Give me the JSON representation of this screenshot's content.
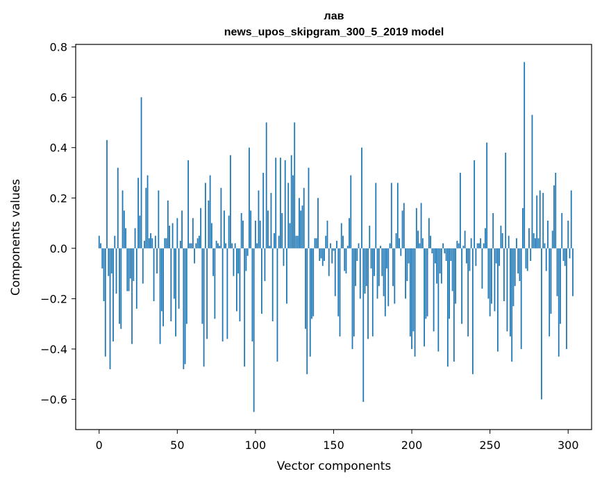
{
  "chart_data": {
    "type": "bar",
    "title": "лав",
    "subtitle": "news_upos_skipgram_300_5_2019 model",
    "xlabel": "Vector components",
    "ylabel": "Components values",
    "xlim": [
      -15,
      315
    ],
    "ylim": [
      -0.72,
      0.81
    ],
    "xticks": [
      0,
      50,
      100,
      150,
      200,
      250,
      300
    ],
    "yticks": [
      -0.6,
      -0.4,
      -0.2,
      0.0,
      0.2,
      0.4,
      0.6,
      0.8
    ],
    "xtick_labels": [
      "0",
      "50",
      "100",
      "150",
      "200",
      "250",
      "300"
    ],
    "ytick_labels": [
      "−0.6",
      "−0.4",
      "−0.2",
      "0.0",
      "0.2",
      "0.4",
      "0.6",
      "0.8"
    ],
    "bar_color": "#1f77b4",
    "grid": false,
    "values": [
      0.05,
      0.02,
      -0.08,
      -0.21,
      -0.43,
      0.43,
      -0.11,
      -0.48,
      -0.1,
      -0.37,
      0.05,
      -0.18,
      0.32,
      -0.3,
      -0.32,
      0.23,
      0.15,
      0.08,
      -0.17,
      -0.17,
      -0.12,
      -0.38,
      -0.13,
      0.08,
      -0.24,
      0.28,
      0.13,
      0.6,
      -0.14,
      0.03,
      0.24,
      0.29,
      0.04,
      0.06,
      0.04,
      -0.21,
      0.05,
      -0.1,
      0.23,
      -0.38,
      -0.25,
      -0.31,
      0.04,
      0.04,
      0.19,
      0.09,
      -0.29,
      0.1,
      -0.2,
      -0.35,
      0.12,
      -0.24,
      0.03,
      0.15,
      -0.48,
      -0.46,
      -0.3,
      0.35,
      0.02,
      0.02,
      0.12,
      -0.06,
      0.02,
      0.04,
      0.05,
      0.16,
      -0.3,
      -0.47,
      0.26,
      -0.36,
      0.19,
      0.29,
      0.1,
      -0.11,
      -0.28,
      0.03,
      0.02,
      0.01,
      0.24,
      -0.37,
      0.15,
      0.02,
      -0.36,
      0.13,
      0.37,
      0.02,
      -0.11,
      0.02,
      -0.25,
      -0.1,
      -0.29,
      0.14,
      0.11,
      -0.47,
      -0.09,
      -0.03,
      0.4,
      0.15,
      -0.37,
      -0.65,
      0.11,
      0.02,
      0.23,
      0.11,
      -0.26,
      0.3,
      -0.13,
      0.5,
      0.15,
      0.01,
      0.22,
      -0.29,
      0.06,
      0.36,
      -0.45,
      0.05,
      0.36,
      0.14,
      -0.07,
      0.35,
      -0.22,
      0.26,
      0.1,
      0.37,
      0.29,
      0.5,
      0.05,
      0.05,
      0.2,
      0.15,
      0.17,
      0.24,
      -0.32,
      -0.5,
      0.32,
      -0.43,
      -0.28,
      -0.27,
      0.04,
      0.04,
      0.2,
      -0.05,
      -0.04,
      -0.07,
      -0.05,
      0.05,
      0.11,
      -0.11,
      0.02,
      -0.06,
      -0.01,
      -0.19,
      0.03,
      -0.27,
      -0.35,
      0.1,
      0.05,
      -0.09,
      -0.1,
      0.01,
      0.12,
      0.29,
      -0.4,
      -0.35,
      -0.15,
      -0.05,
      0.02,
      -0.2,
      0.4,
      -0.61,
      -0.18,
      -0.15,
      -0.36,
      0.09,
      -0.08,
      -0.35,
      -0.11,
      0.26,
      -0.2,
      -0.15,
      0.01,
      -0.11,
      -0.19,
      -0.27,
      -0.08,
      -0.23,
      0.02,
      0.26,
      -0.15,
      -0.22,
      0.06,
      0.26,
      0.04,
      -0.03,
      0.15,
      0.18,
      -0.2,
      -0.13,
      -0.06,
      -0.35,
      -0.4,
      -0.33,
      -0.43,
      0.16,
      0.07,
      0.02,
      0.18,
      0.04,
      -0.39,
      -0.28,
      -0.27,
      0.12,
      0.05,
      -0.02,
      -0.33,
      -0.06,
      -0.14,
      -0.41,
      -0.1,
      -0.14,
      0.02,
      -0.02,
      -0.05,
      -0.47,
      -0.28,
      -0.05,
      -0.17,
      -0.45,
      -0.22,
      0.03,
      0.02,
      0.3,
      -0.3,
      0.01,
      0.07,
      -0.06,
      -0.35,
      -0.09,
      0.04,
      -0.5,
      0.35,
      -0.07,
      0.02,
      0.02,
      0.04,
      -0.16,
      0.02,
      0.08,
      0.42,
      -0.2,
      -0.27,
      -0.22,
      0.14,
      -0.25,
      -0.06,
      -0.41,
      -0.07,
      0.09,
      0.06,
      -0.21,
      0.38,
      -0.33,
      0.05,
      -0.35,
      -0.45,
      -0.23,
      -0.15,
      0.04,
      -0.1,
      -0.13,
      -0.4,
      0.16,
      0.74,
      -0.08,
      -0.09,
      0.08,
      -0.05,
      0.53,
      0.06,
      0.04,
      0.21,
      0.04,
      0.23,
      -0.6,
      0.22,
      0.02,
      -0.09,
      0.11,
      -0.35,
      -0.26,
      0.07,
      0.25,
      0.3,
      -0.19,
      -0.43,
      -0.3,
      0.14,
      -0.05,
      -0.07,
      -0.4,
      0.11,
      -0.04,
      0.23,
      -0.19
    ]
  }
}
